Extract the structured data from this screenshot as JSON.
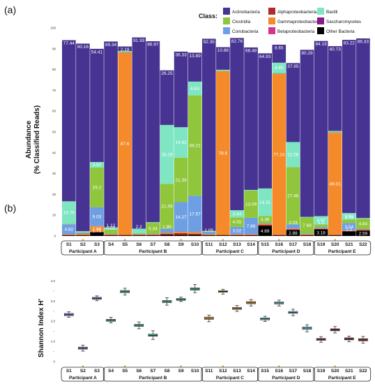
{
  "colors": {
    "Actinobacteria": "#473391",
    "Clostridia": "#8fc63b",
    "Coriobacteria": "#6f9fe3",
    "Alphaproteobacteria": "#b02a2a",
    "Gammaproteobacteria": "#f48a2a",
    "Betaproteobacteria": "#d7338c",
    "Bacilli": "#7ee6c3",
    "Saccharomycetes": "#8a1a8a",
    "Other Bacteria": "#000000"
  },
  "chart_data": [
    {
      "type": "bar",
      "panel_label": "(a)",
      "ylabel": "Abundance\n(% Classified Reads)",
      "ylim": [
        0,
        100
      ],
      "yticks": [
        0,
        10,
        20,
        30,
        40,
        50,
        60,
        70,
        80,
        90,
        100
      ],
      "legend": {
        "title": "Class:",
        "placement": "top-right",
        "entries": [
          "Actinobacteria",
          "Alphaproteobacteria",
          "Bacilli",
          "Clostridia",
          "Gammaproteobacteria",
          "Saccharomycetes",
          "Coriobacteria",
          "Betaproteobacteria",
          "Other Bacteria"
        ]
      },
      "samples": [
        "S1",
        "S2",
        "S3",
        "S4",
        "S5",
        "S6",
        "S7",
        "S8",
        "S9",
        "S10",
        "S11",
        "S12",
        "S13",
        "S14",
        "S15",
        "S16",
        "S17",
        "S18",
        "S19",
        "S20",
        "S21",
        "S22"
      ],
      "highlighted": [
        "S2",
        "S5",
        "S9",
        "S12",
        "S16",
        "S20"
      ],
      "groups": [
        {
          "label": "Participant A",
          "samples": [
            "S1",
            "S2",
            "S3"
          ]
        },
        {
          "label": "Participant B",
          "samples": [
            "S4",
            "S5",
            "S6",
            "S7",
            "S8",
            "S9",
            "S10"
          ]
        },
        {
          "label": "Participant C",
          "samples": [
            "S11",
            "S12",
            "S13",
            "S14"
          ]
        },
        {
          "label": "Participant D",
          "samples": [
            "S15",
            "S16",
            "S17",
            "S18"
          ]
        },
        {
          "label": "Participant E",
          "samples": [
            "S19",
            "S20",
            "S21",
            "S22"
          ]
        }
      ],
      "series": [
        {
          "name": "Other Bacteria",
          "values": [
            0.3,
            0.3,
            1.76,
            0.3,
            0.3,
            0.3,
            0.3,
            0.5,
            0.5,
            0.5,
            0.3,
            0.3,
            0.3,
            0.3,
            4.89,
            0.3,
            2.88,
            0.3,
            3.18,
            0.3,
            2.2,
            2.59
          ]
        },
        {
          "name": "Alphaproteobacteria",
          "values": [
            0.2,
            0.2,
            0.3,
            0.2,
            0.2,
            0.2,
            0.2,
            0.5,
            0.9,
            0.5,
            0.2,
            0.2,
            0.3,
            0.3,
            0.5,
            0.3,
            0.4,
            0.3,
            0.2,
            0.3,
            0.2,
            0.3
          ]
        },
        {
          "name": "Betaproteobacteria",
          "values": [
            0,
            0,
            0,
            0,
            0,
            0,
            0,
            0,
            0,
            0,
            0,
            0,
            0,
            0,
            0,
            0,
            0,
            0,
            0,
            0,
            0,
            0
          ]
        },
        {
          "name": "Gammaproteobacteria",
          "values": [
            0.3,
            0.5,
            2.69,
            0.3,
            87.6,
            0.3,
            0.3,
            0.5,
            0.6,
            0.8,
            0.3,
            78.6,
            0.3,
            0.3,
            0.5,
            77.24,
            0.3,
            0.3,
            0.3,
            49.01,
            0.3,
            0.3
          ]
        },
        {
          "name": "Coriobacteria",
          "values": [
            4.82,
            0.5,
            9.03,
            0.2,
            0.2,
            0.2,
            0.2,
            1.99,
            14.27,
            17.57,
            1.05,
            0.2,
            3.52,
            7.86,
            0.3,
            0.3,
            2.03,
            0.3,
            0.6,
            0.3,
            3.54,
            0.3
          ]
        },
        {
          "name": "Clostridia",
          "values": [
            0.3,
            0.3,
            19.2,
            2.02,
            0.3,
            0.3,
            5.34,
            21.59,
            21.39,
            48.21,
            0.3,
            0.3,
            4.55,
            13.09,
            3.36,
            0.3,
            27.46,
            7.69,
            1.3,
            0.3,
            1.73,
            4.84
          ]
        },
        {
          "name": "Bacilli",
          "values": [
            10.76,
            0.5,
            2.57,
            1.12,
            0.3,
            2.2,
            0.3,
            28.29,
            14.62,
            6.63,
            0.3,
            0.3,
            3.44,
            0.3,
            13.31,
            4.85,
            12.08,
            0.3,
            3.97,
            0.3,
            3.06,
            0.3
          ]
        },
        {
          "name": "Saccharomycetes",
          "values": [
            0,
            0,
            0,
            0,
            0,
            0,
            0,
            0,
            0,
            0,
            0,
            0,
            0,
            0,
            0,
            0,
            0,
            0,
            0,
            0,
            0,
            0
          ]
        },
        {
          "name": "Actinobacteria",
          "values": [
            77.44,
            90.16,
            54.41,
            89.34,
            2.19,
            91.93,
            86.97,
            26.25,
            36.33,
            13.89,
            92.35,
            10.86,
            82.76,
            68.48,
            64.93,
            8.65,
            37.95,
            80.29,
            84.19,
            40.73,
            83.22,
            86.33
          ]
        }
      ],
      "data_labels": [
        {
          "sample": "S1",
          "series": "Actinobacteria",
          "text": "77.44"
        },
        {
          "sample": "S1",
          "series": "Bacilli",
          "text": "10.76"
        },
        {
          "sample": "S1",
          "series": "Coriobacteria",
          "text": "4.82"
        },
        {
          "sample": "S2",
          "series": "Actinobacteria",
          "text": "90.16"
        },
        {
          "sample": "S3",
          "series": "Actinobacteria",
          "text": "54.41"
        },
        {
          "sample": "S3",
          "series": "Bacilli",
          "text": "2.57"
        },
        {
          "sample": "S3",
          "series": "Clostridia",
          "text": "19.2"
        },
        {
          "sample": "S3",
          "series": "Coriobacteria",
          "text": "9.03"
        },
        {
          "sample": "S3",
          "series": "Gammaproteobacteria",
          "text": "2.69"
        },
        {
          "sample": "S3",
          "series": "Other Bacteria",
          "text": "1.76"
        },
        {
          "sample": "S4",
          "series": "Actinobacteria",
          "text": "89.34"
        },
        {
          "sample": "S4",
          "series": "Bacilli",
          "text": "1.12"
        },
        {
          "sample": "S4",
          "series": "Clostridia",
          "text": "2.02"
        },
        {
          "sample": "S5",
          "series": "Actinobacteria",
          "text": "2.19"
        },
        {
          "sample": "S5",
          "series": "Gammaproteobacteria",
          "text": "87.6"
        },
        {
          "sample": "S6",
          "series": "Actinobacteria",
          "text": "91.93"
        },
        {
          "sample": "S6",
          "series": "Bacilli",
          "text": "2.2"
        },
        {
          "sample": "S7",
          "series": "Actinobacteria",
          "text": "86.97"
        },
        {
          "sample": "S7",
          "series": "Clostridia",
          "text": "5.34"
        },
        {
          "sample": "S8",
          "series": "Actinobacteria",
          "text": "26.25"
        },
        {
          "sample": "S8",
          "series": "Bacilli",
          "text": "28.29"
        },
        {
          "sample": "S8",
          "series": "Clostridia",
          "text": "21.59"
        },
        {
          "sample": "S8",
          "series": "Coriobacteria",
          "text": "1.99"
        },
        {
          "sample": "S9",
          "series": "Actinobacteria",
          "text": "36.33"
        },
        {
          "sample": "S9",
          "series": "Bacilli",
          "text": "14.62"
        },
        {
          "sample": "S9",
          "series": "Clostridia",
          "text": "21.39"
        },
        {
          "sample": "S9",
          "series": "Coriobacteria",
          "text": "14.27"
        },
        {
          "sample": "S10",
          "series": "Actinobacteria",
          "text": "13.89"
        },
        {
          "sample": "S10",
          "series": "Bacilli",
          "text": "6.63"
        },
        {
          "sample": "S10",
          "series": "Clostridia",
          "text": "48.21"
        },
        {
          "sample": "S10",
          "series": "Coriobacteria",
          "text": "17.57"
        },
        {
          "sample": "S11",
          "series": "Actinobacteria",
          "text": "92.35"
        },
        {
          "sample": "S11",
          "series": "Coriobacteria",
          "text": "1.05"
        },
        {
          "sample": "S12",
          "series": "Actinobacteria",
          "text": "10.86"
        },
        {
          "sample": "S12",
          "series": "Gammaproteobacteria",
          "text": "78.6"
        },
        {
          "sample": "S13",
          "series": "Actinobacteria",
          "text": "82.76"
        },
        {
          "sample": "S13",
          "series": "Bacilli",
          "text": "3.44"
        },
        {
          "sample": "S13",
          "series": "Clostridia",
          "text": "4.55"
        },
        {
          "sample": "S13",
          "series": "Coriobacteria",
          "text": "3.52"
        },
        {
          "sample": "S14",
          "series": "Actinobacteria",
          "text": "68.48"
        },
        {
          "sample": "S14",
          "series": "Clostridia",
          "text": "13.09"
        },
        {
          "sample": "S14",
          "series": "Coriobacteria",
          "text": "7.86"
        },
        {
          "sample": "S15",
          "series": "Actinobacteria",
          "text": "64.93"
        },
        {
          "sample": "S15",
          "series": "Bacilli",
          "text": "13.31"
        },
        {
          "sample": "S15",
          "series": "Clostridia",
          "text": "3.36"
        },
        {
          "sample": "S15",
          "series": "Other Bacteria",
          "text": "4.89"
        },
        {
          "sample": "S16",
          "series": "Actinobacteria",
          "text": "8.65"
        },
        {
          "sample": "S16",
          "series": "Bacilli",
          "text": "4.85"
        },
        {
          "sample": "S16",
          "series": "Gammaproteobacteria",
          "text": "77.24"
        },
        {
          "sample": "S17",
          "series": "Actinobacteria",
          "text": "37.95"
        },
        {
          "sample": "S17",
          "series": "Bacilli",
          "text": "12.08"
        },
        {
          "sample": "S17",
          "series": "Clostridia",
          "text": "27.46"
        },
        {
          "sample": "S17",
          "series": "Coriobacteria",
          "text": "2.03"
        },
        {
          "sample": "S17",
          "series": "Other Bacteria",
          "text": "2.88"
        },
        {
          "sample": "S18",
          "series": "Actinobacteria",
          "text": "80.29"
        },
        {
          "sample": "S18",
          "series": "Clostridia",
          "text": "7.69"
        },
        {
          "sample": "S19",
          "series": "Actinobacteria",
          "text": "84.19"
        },
        {
          "sample": "S19",
          "series": "Bacilli",
          "text": "3.97"
        },
        {
          "sample": "S19",
          "series": "Clostridia",
          "text": "1.3"
        },
        {
          "sample": "S19",
          "series": "Other Bacteria",
          "text": "3.18"
        },
        {
          "sample": "S20",
          "series": "Actinobacteria",
          "text": "40.73"
        },
        {
          "sample": "S20",
          "series": "Gammaproteobacteria",
          "text": "49.01"
        },
        {
          "sample": "S21",
          "series": "Actinobacteria",
          "text": "83.22"
        },
        {
          "sample": "S21",
          "series": "Bacilli",
          "text": "3.06"
        },
        {
          "sample": "S21",
          "series": "Clostridia",
          "text": "1.73"
        },
        {
          "sample": "S21",
          "series": "Coriobacteria",
          "text": "3.54"
        },
        {
          "sample": "S21",
          "series": "Other Bacteria",
          "text": "2.2"
        },
        {
          "sample": "S22",
          "series": "Actinobacteria",
          "text": "86.33"
        },
        {
          "sample": "S22",
          "series": "Clostridia",
          "text": "4.84"
        },
        {
          "sample": "S22",
          "series": "Other Bacteria",
          "text": "2.59"
        }
      ]
    },
    {
      "type": "box",
      "panel_label": "(b)",
      "ylabel": "Shannon Index H'",
      "ylim": [
        0,
        4.5
      ],
      "yticks": [
        0,
        0.5,
        1.0,
        1.5,
        2.0,
        2.5,
        3.0,
        3.5,
        4.0
      ],
      "ytick_labels": [
        "0",
        "",
        "1.0",
        "",
        "2.0",
        "",
        "3.0",
        "",
        "4.0"
      ],
      "samples": [
        "S1",
        "S2",
        "S3",
        "S4",
        "S5",
        "S6",
        "S7",
        "S8",
        "S9",
        "S10",
        "S11",
        "S12",
        "S13",
        "S14",
        "S15",
        "S16",
        "S17",
        "S18",
        "S19",
        "S20",
        "S21",
        "S22"
      ],
      "box_colors": [
        "#9b7fe8",
        "#9b7fe8",
        "#9b7fe8",
        "#4dd191",
        "#4dd191",
        "#4dd191",
        "#4dd191",
        "#4dd191",
        "#4dd191",
        "#4dd191",
        "#f2a23a",
        "#f2a23a",
        "#f2a23a",
        "#f2a23a",
        "#7fe0e8",
        "#7fe0e8",
        "#7fe0e8",
        "#7fe0e8",
        "#a8323a",
        "#a8323a",
        "#a8323a",
        "#a8323a"
      ],
      "boxes": [
        {
          "sample": "S1",
          "min": 2.2,
          "q1": 2.28,
          "median": 2.33,
          "q3": 2.39,
          "max": 2.47
        },
        {
          "sample": "S2",
          "min": 0.52,
          "q1": 0.62,
          "median": 0.67,
          "q3": 0.72,
          "max": 0.82
        },
        {
          "sample": "S3",
          "min": 3.02,
          "q1": 3.09,
          "median": 3.14,
          "q3": 3.19,
          "max": 3.26
        },
        {
          "sample": "S4",
          "min": 1.92,
          "q1": 2.0,
          "median": 2.05,
          "q3": 2.1,
          "max": 2.2
        },
        {
          "sample": "S5",
          "min": 3.3,
          "q1": 3.42,
          "median": 3.47,
          "q3": 3.53,
          "max": 3.64
        },
        {
          "sample": "S6",
          "min": 1.63,
          "q1": 1.75,
          "median": 1.8,
          "q3": 1.85,
          "max": 1.97
        },
        {
          "sample": "S7",
          "min": 1.1,
          "q1": 1.26,
          "median": 1.3,
          "q3": 1.37,
          "max": 1.53
        },
        {
          "sample": "S8",
          "min": 2.8,
          "q1": 2.93,
          "median": 2.98,
          "q3": 3.03,
          "max": 3.17
        },
        {
          "sample": "S9",
          "min": 2.98,
          "q1": 3.04,
          "median": 3.08,
          "q3": 3.13,
          "max": 3.2
        },
        {
          "sample": "S10",
          "min": 3.42,
          "q1": 3.55,
          "median": 3.6,
          "q3": 3.66,
          "max": 3.82
        },
        {
          "sample": "S11",
          "min": 1.98,
          "q1": 2.1,
          "median": 2.15,
          "q3": 2.21,
          "max": 2.31
        },
        {
          "sample": "S12",
          "min": 3.35,
          "q1": 3.44,
          "median": 3.48,
          "q3": 3.52,
          "max": 3.59
        },
        {
          "sample": "S13",
          "min": 2.49,
          "q1": 2.59,
          "median": 2.64,
          "q3": 2.69,
          "max": 2.78
        },
        {
          "sample": "S14",
          "min": 2.76,
          "q1": 2.87,
          "median": 2.92,
          "q3": 2.98,
          "max": 3.08
        },
        {
          "sample": "S15",
          "min": 1.99,
          "q1": 2.07,
          "median": 2.12,
          "q3": 2.17,
          "max": 2.25
        },
        {
          "sample": "S16",
          "min": 2.76,
          "q1": 2.86,
          "median": 2.91,
          "q3": 2.96,
          "max": 3.05
        },
        {
          "sample": "S17",
          "min": 2.28,
          "q1": 2.39,
          "median": 2.44,
          "q3": 2.49,
          "max": 2.6
        },
        {
          "sample": "S18",
          "min": 1.48,
          "q1": 1.6,
          "median": 1.66,
          "q3": 1.72,
          "max": 1.83
        },
        {
          "sample": "S19",
          "min": 0.96,
          "q1": 1.06,
          "median": 1.1,
          "q3": 1.15,
          "max": 1.24
        },
        {
          "sample": "S20",
          "min": 1.42,
          "q1": 1.53,
          "median": 1.58,
          "q3": 1.63,
          "max": 1.74
        },
        {
          "sample": "S21",
          "min": 0.99,
          "q1": 1.08,
          "median": 1.13,
          "q3": 1.18,
          "max": 1.27
        },
        {
          "sample": "S22",
          "min": 0.92,
          "q1": 1.03,
          "median": 1.08,
          "q3": 1.14,
          "max": 1.25
        }
      ]
    }
  ]
}
